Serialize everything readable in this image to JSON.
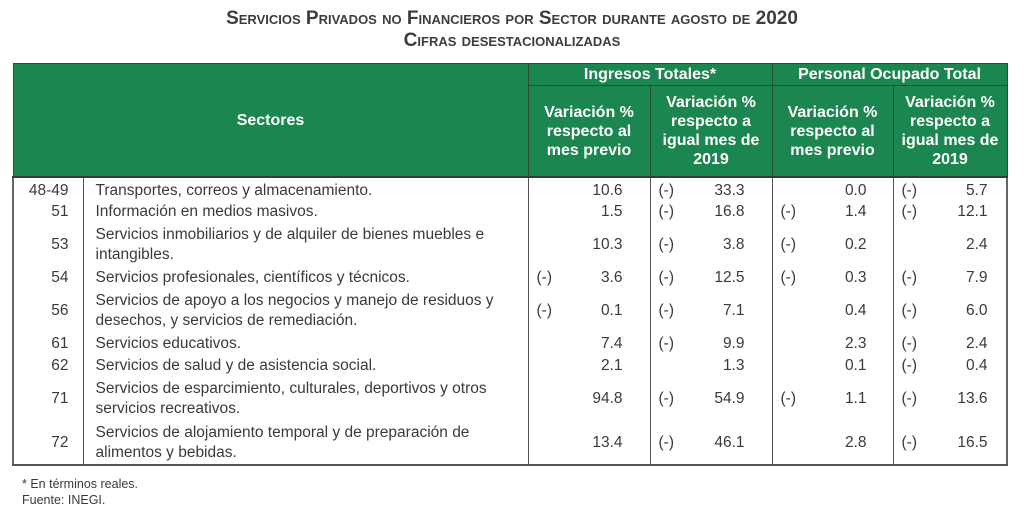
{
  "title": {
    "line1": "Servicios Privados no Financieros por Sector durante agosto de 2020",
    "line2": "Cifras desestacionalizadas"
  },
  "colors": {
    "header_bg": "#1b8650",
    "header_text": "#ffffff",
    "body_text": "#3a3a3a"
  },
  "table": {
    "header": {
      "sectores": "Sectores",
      "group1": "Ingresos Totales*",
      "group2": "Personal Ocupado Total",
      "sub1": "Variación % respecto al mes previo",
      "sub2": "Variación % respecto a igual mes de 2019",
      "sub3": "Variación % respecto al mes previo",
      "sub4": "Variación % respecto a igual mes de 2019"
    },
    "rows": [
      {
        "code": "48-49",
        "sector": "Transportes, correos y almacenamiento.",
        "ing_mes_neg": "",
        "ing_mes": "10.6",
        "ing_anual_neg": "(-)",
        "ing_anual": "33.3",
        "pers_mes_neg": "",
        "pers_mes": "0.0",
        "pers_anual_neg": "(-)",
        "pers_anual": "5.7"
      },
      {
        "code": "51",
        "sector": "Información en medios masivos.",
        "ing_mes_neg": "",
        "ing_mes": "1.5",
        "ing_anual_neg": "(-)",
        "ing_anual": "16.8",
        "pers_mes_neg": "(-)",
        "pers_mes": "1.4",
        "pers_anual_neg": "(-)",
        "pers_anual": "12.1"
      },
      {
        "code": "53",
        "sector": "Servicios inmobiliarios y de alquiler de bienes muebles e intangibles.",
        "ing_mes_neg": "",
        "ing_mes": "10.3",
        "ing_anual_neg": "(-)",
        "ing_anual": "3.8",
        "pers_mes_neg": "(-)",
        "pers_mes": "0.2",
        "pers_anual_neg": "",
        "pers_anual": "2.4"
      },
      {
        "code": "54",
        "sector": "Servicios profesionales, científicos y técnicos.",
        "ing_mes_neg": "(-)",
        "ing_mes": "3.6",
        "ing_anual_neg": "(-)",
        "ing_anual": "12.5",
        "pers_mes_neg": "(-)",
        "pers_mes": "0.3",
        "pers_anual_neg": "(-)",
        "pers_anual": "7.9"
      },
      {
        "code": "56",
        "sector": "Servicios de apoyo a los negocios y manejo de residuos y desechos, y servicios de remediación.",
        "ing_mes_neg": "(-)",
        "ing_mes": "0.1",
        "ing_anual_neg": "(-)",
        "ing_anual": "7.1",
        "pers_mes_neg": "",
        "pers_mes": "0.4",
        "pers_anual_neg": "(-)",
        "pers_anual": "6.0"
      },
      {
        "code": "61",
        "sector": "Servicios educativos.",
        "ing_mes_neg": "",
        "ing_mes": "7.4",
        "ing_anual_neg": "(-)",
        "ing_anual": "9.9",
        "pers_mes_neg": "",
        "pers_mes": "2.3",
        "pers_anual_neg": "(-)",
        "pers_anual": "2.4"
      },
      {
        "code": "62",
        "sector": "Servicios de salud y de asistencia social.",
        "ing_mes_neg": "",
        "ing_mes": "2.1",
        "ing_anual_neg": "",
        "ing_anual": "1.3",
        "pers_mes_neg": "",
        "pers_mes": "0.1",
        "pers_anual_neg": "(-)",
        "pers_anual": "0.4"
      },
      {
        "code": "71",
        "sector": "Servicios de esparcimiento, culturales, deportivos y otros servicios recreativos.",
        "ing_mes_neg": "",
        "ing_mes": "94.8",
        "ing_anual_neg": "(-)",
        "ing_anual": "54.9",
        "pers_mes_neg": "(-)",
        "pers_mes": "1.1",
        "pers_anual_neg": "(-)",
        "pers_anual": "13.6"
      },
      {
        "code": "72",
        "sector": "Servicios de alojamiento temporal y de preparación de alimentos y bebidas.",
        "ing_mes_neg": "",
        "ing_mes": "13.4",
        "ing_anual_neg": "(-)",
        "ing_anual": "46.1",
        "pers_mes_neg": "",
        "pers_mes": "2.8",
        "pers_anual_neg": "(-)",
        "pers_anual": "16.5"
      }
    ]
  },
  "footnotes": {
    "note": "* En términos reales.",
    "source": "Fuente: INEGI."
  }
}
